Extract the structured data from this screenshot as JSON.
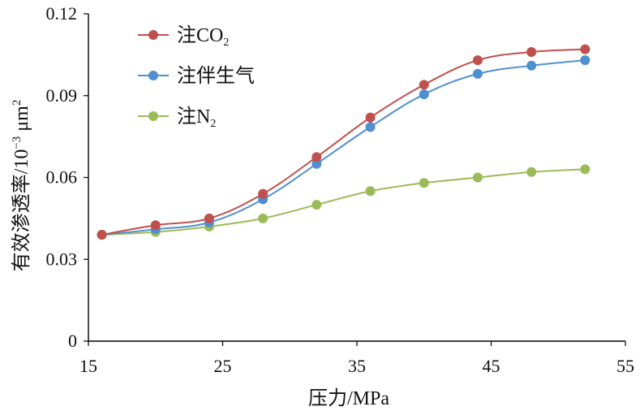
{
  "chart_data": {
    "type": "line",
    "title": "",
    "xlabel": "压力/MPa",
    "ylabel": {
      "main": "有效渗透率/10",
      "exponent": "−3",
      "unit": " μm",
      "unit_exponent": "2"
    },
    "xlim": [
      15,
      55
    ],
    "ylim": [
      0,
      0.12
    ],
    "x_ticks": [
      15,
      25,
      35,
      45,
      55
    ],
    "x_tick_labels": [
      "15",
      "25",
      "35",
      "45",
      "55"
    ],
    "y_ticks": [
      0,
      0.03,
      0.06,
      0.09,
      0.12
    ],
    "y_tick_labels": [
      "0",
      "0.03",
      "0.06",
      "0.09",
      "0.12"
    ],
    "grid": false,
    "legend_position": "top-left",
    "series": [
      {
        "name": "注CO2",
        "name_parts": {
          "main": "注CO",
          "sub": "2"
        },
        "color": "#c0504d",
        "x": [
          16,
          20,
          24,
          28,
          32,
          36,
          40,
          44,
          48,
          52
        ],
        "values": [
          0.039,
          0.0425,
          0.045,
          0.054,
          0.0675,
          0.082,
          0.094,
          0.103,
          0.106,
          0.107
        ]
      },
      {
        "name": "注伴生气",
        "name_parts": {
          "main": "注伴生气",
          "sub": ""
        },
        "color": "#4f8fcf",
        "x": [
          16,
          20,
          24,
          28,
          32,
          36,
          40,
          44,
          48,
          52
        ],
        "values": [
          0.039,
          0.041,
          0.0435,
          0.052,
          0.065,
          0.0785,
          0.0905,
          0.098,
          0.101,
          0.103
        ]
      },
      {
        "name": "注N2",
        "name_parts": {
          "main": "注N",
          "sub": "2"
        },
        "color": "#9bbb59",
        "x": [
          16,
          20,
          24,
          28,
          32,
          36,
          40,
          44,
          48,
          52
        ],
        "values": [
          0.039,
          0.04,
          0.042,
          0.045,
          0.05,
          0.055,
          0.058,
          0.06,
          0.062,
          0.063
        ]
      }
    ]
  }
}
